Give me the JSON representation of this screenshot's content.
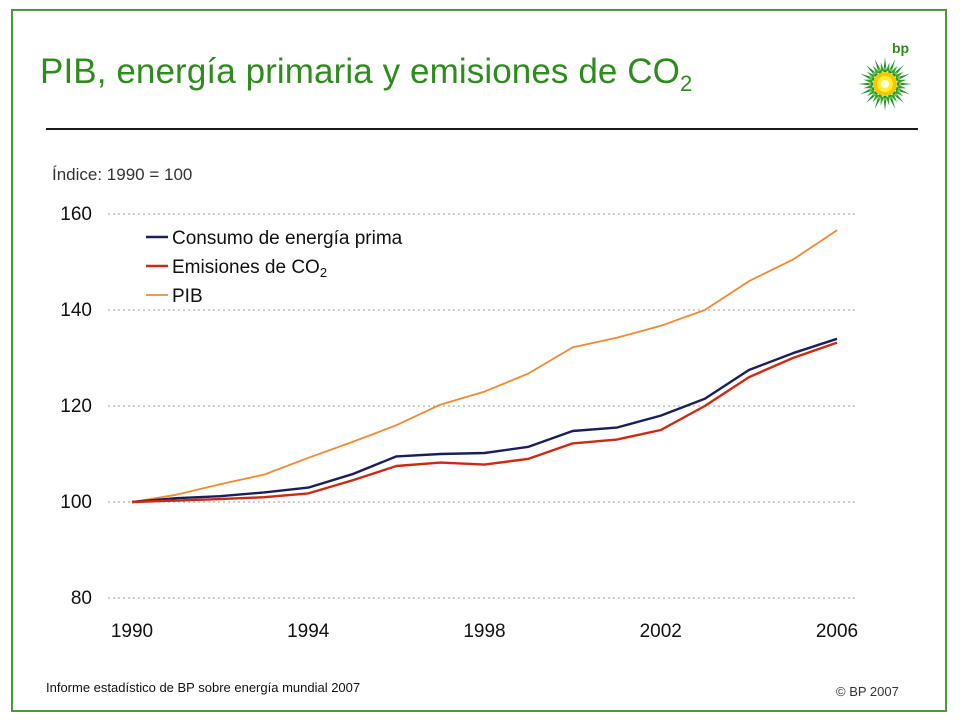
{
  "header": {
    "title_main": "PIB, energía primaria y emisiones de CO",
    "title_sub": "2",
    "logo_text": "bp"
  },
  "colors": {
    "title": "#2e8b1e",
    "frame": "#4a9a3a"
  },
  "chart_data": {
    "type": "line",
    "index_label": "Índice: 1990 = 100",
    "x_ticks": [
      "1990",
      "1994",
      "1998",
      "2002",
      "2006"
    ],
    "y_ticks": [
      "80",
      "100",
      "120",
      "140",
      "160"
    ],
    "xlim": [
      1990,
      2006
    ],
    "ylim": [
      80,
      160
    ],
    "grid": "horizontal dotted",
    "legend_position": "top-left",
    "x": [
      1990,
      1991,
      1992,
      1993,
      1994,
      1995,
      1996,
      1997,
      1998,
      1999,
      2000,
      2001,
      2002,
      2003,
      2004,
      2005,
      2006
    ],
    "series": [
      {
        "name": "Consumo de energía prima",
        "color": "#1a1f5c",
        "values": [
          100,
          100.8,
          101.2,
          102,
          103,
          105.8,
          109.5,
          110,
          110.2,
          111.5,
          114.8,
          115.5,
          118,
          121.5,
          127.5,
          131,
          134
        ]
      },
      {
        "name": "Emisiones de CO",
        "name_sub": "2",
        "color": "#cc2a12",
        "values": [
          100,
          100.3,
          100.6,
          101,
          101.8,
          104.5,
          107.5,
          108.2,
          107.8,
          109,
          112.2,
          113,
          115,
          120,
          126,
          130,
          133.2
        ]
      },
      {
        "name": "PIB",
        "name_sub": "",
        "color": "#f08a30",
        "values": [
          100,
          101.5,
          103.7,
          105.7,
          109.2,
          112.5,
          116,
          120.3,
          123,
          126.8,
          132.2,
          134.2,
          136.7,
          140,
          146,
          150.5,
          156.6
        ]
      }
    ]
  },
  "footer": {
    "source": "Informe estadístico de BP sobre energía mundial 2007",
    "copyright": "© BP 2007"
  }
}
